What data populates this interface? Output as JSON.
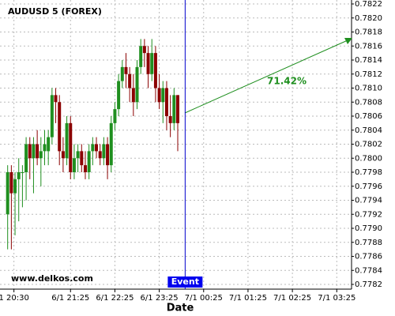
{
  "chart_data": {
    "type": "candlestick",
    "title": "AUDUSD 5 (FOREX)",
    "x_label": "Date",
    "watermark": "www.delkos.com",
    "up_color": "#1f8f1f",
    "down_color": "#8b0000",
    "grid": true,
    "open": [
      0.7792,
      0.7798,
      0.7795,
      0.7797,
      0.7798,
      0.7798,
      0.7802,
      0.78,
      0.7802,
      0.78,
      0.7801,
      0.7801,
      0.7803,
      0.7809,
      0.7808,
      0.7801,
      0.78,
      0.7805,
      0.7798,
      0.78,
      0.7801,
      0.7799,
      0.7798,
      0.7801,
      0.7802,
      0.7801,
      0.78,
      0.7802,
      0.7799,
      0.7805,
      0.7807,
      0.7811,
      0.7813,
      0.7812,
      0.781,
      0.7808,
      0.7813,
      0.7816,
      0.7815,
      0.7812,
      0.7815,
      0.781,
      0.7808,
      0.781,
      0.7806,
      0.7805,
      0.7809
    ],
    "high": [
      0.7799,
      0.7799,
      0.7798,
      0.78,
      0.7799,
      0.7803,
      0.7803,
      0.7803,
      0.7804,
      0.7803,
      0.7804,
      0.7804,
      0.781,
      0.781,
      0.7809,
      0.7803,
      0.7806,
      0.7806,
      0.7802,
      0.7802,
      0.7802,
      0.7801,
      0.7802,
      0.7803,
      0.7803,
      0.7802,
      0.7803,
      0.7803,
      0.7806,
      0.7808,
      0.7812,
      0.7814,
      0.7815,
      0.7813,
      0.7812,
      0.7814,
      0.7817,
      0.7817,
      0.7816,
      0.7817,
      0.7816,
      0.7812,
      0.7811,
      0.7811,
      0.7809,
      0.781,
      0.7809
    ],
    "low": [
      0.7787,
      0.7787,
      0.7789,
      0.7791,
      0.7793,
      0.7794,
      0.7797,
      0.7795,
      0.7799,
      0.7796,
      0.7799,
      0.7799,
      0.7802,
      0.7805,
      0.7799,
      0.7798,
      0.7799,
      0.7797,
      0.7797,
      0.7798,
      0.7798,
      0.7797,
      0.7797,
      0.7799,
      0.78,
      0.7799,
      0.7799,
      0.7797,
      0.7798,
      0.7804,
      0.7806,
      0.781,
      0.781,
      0.7808,
      0.7806,
      0.7807,
      0.7812,
      0.7813,
      0.781,
      0.7811,
      0.7808,
      0.7807,
      0.7805,
      0.7804,
      0.7803,
      0.7804,
      0.7801
    ],
    "close": [
      0.7798,
      0.7795,
      0.7797,
      0.7798,
      0.7798,
      0.7802,
      0.78,
      0.7802,
      0.78,
      0.7801,
      0.7802,
      0.7803,
      0.7809,
      0.7808,
      0.7801,
      0.78,
      0.7805,
      0.7798,
      0.78,
      0.7801,
      0.7799,
      0.7798,
      0.7801,
      0.7802,
      0.7801,
      0.78,
      0.7802,
      0.7799,
      0.7805,
      0.7807,
      0.7811,
      0.7813,
      0.7812,
      0.781,
      0.7808,
      0.7813,
      0.7816,
      0.7815,
      0.7812,
      0.7815,
      0.781,
      0.7808,
      0.781,
      0.7806,
      0.7805,
      0.7809,
      0.7805
    ],
    "xlim": [
      -1,
      93
    ],
    "xticks": [
      {
        "value": 1.7,
        "label": "1 20:30"
      },
      {
        "value": 17,
        "label": "6/1 21:25"
      },
      {
        "value": 29,
        "label": "6/1 22:25"
      },
      {
        "value": 41,
        "label": "6/1 23:25"
      },
      {
        "value": 53,
        "label": "7/1 00:25"
      },
      {
        "value": 65,
        "label": "7/1 01:25"
      },
      {
        "value": 77,
        "label": "7/1 02:25"
      },
      {
        "value": 89,
        "label": "7/1 03:25"
      }
    ],
    "ylim": [
      0.7782,
      0.7822
    ],
    "yticks": [
      0.7782,
      0.7784,
      0.7786,
      0.7788,
      {
        "value": 0.779,
        "label": "0.7790"
      },
      0.7792,
      0.7794,
      0.7796,
      0.7798,
      {
        "value": 0.78,
        "label": "0.7800"
      },
      0.7802,
      0.7804,
      0.7806,
      0.7808,
      {
        "value": 0.781,
        "label": "0.7810"
      },
      0.7812,
      0.7814,
      0.7816,
      0.7818,
      {
        "value": 0.782,
        "label": "0.7820"
      },
      0.7822
    ],
    "event": {
      "label": "Event",
      "x": 48
    },
    "projection_label": "71.42%"
  }
}
